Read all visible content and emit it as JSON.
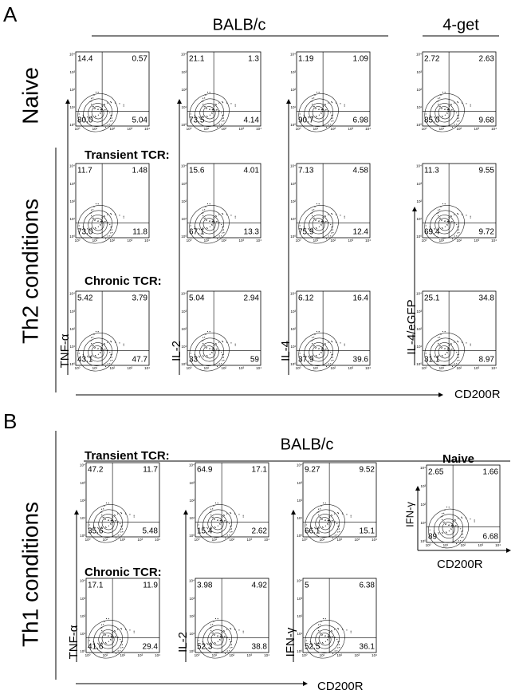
{
  "panel_a": {
    "label": "A",
    "header": "BALB/c",
    "header_right": "4-get",
    "row_label_naive": "Naive",
    "row_label_th2": "Th2 conditions",
    "subheads": [
      "Transient TCR:",
      "Chronic TCR:"
    ],
    "y_labels": [
      "TNF-α",
      "IL-2",
      "IL-4",
      "IL-4/eGFP"
    ],
    "x_label": "CD200R",
    "plots": [
      [
        [
          "14.4",
          "0.57",
          "80.0",
          "5.04"
        ],
        [
          "21.1",
          "1.3",
          "73.5",
          "4.14"
        ],
        [
          "1.19",
          "1.09",
          "90.7",
          "6.98"
        ],
        [
          "2.72",
          "2.63",
          "85.0",
          "9.68"
        ]
      ],
      [
        [
          "11.7",
          "1.48",
          "73.0",
          "11.8"
        ],
        [
          "15.6",
          "4.01",
          "67.1",
          "13.3"
        ],
        [
          "7.13",
          "4.58",
          "75.9",
          "12.4"
        ],
        [
          "11.3",
          "9.55",
          "69.4",
          "9.72"
        ]
      ],
      [
        [
          "5.42",
          "3.79",
          "43.1",
          "47.7"
        ],
        [
          "5.04",
          "2.94",
          "33",
          "59"
        ],
        [
          "6.12",
          "16.4",
          "37.9",
          "39.6"
        ],
        [
          "25.1",
          "34.8",
          "31.1",
          "8.97"
        ]
      ]
    ]
  },
  "panel_b": {
    "label": "B",
    "header": "BALB/c",
    "row_label": "Th1 conditions",
    "subheads": [
      "Transient TCR:",
      "Chronic TCR:"
    ],
    "y_labels": [
      "TNF-α",
      "IL-2",
      "IFN-γ"
    ],
    "x_label": "CD200R",
    "plots": [
      [
        [
          "47.2",
          "11.7",
          "35.6",
          "5.48"
        ],
        [
          "64.9",
          "17.1",
          "15.4",
          "2.62"
        ],
        [
          "9.27",
          "9.52",
          "66.1",
          "15.1"
        ]
      ],
      [
        [
          "17.1",
          "11.9",
          "41.6",
          "29.4"
        ],
        [
          "3.98",
          "4.92",
          "52.3",
          "38.8"
        ],
        [
          "5",
          "6.38",
          "52.5",
          "36.1"
        ]
      ]
    ],
    "naive": {
      "title": "Naive",
      "y_label": "IFN-γ",
      "x_label": "CD200R",
      "quadrants": [
        "2.65",
        "1.66",
        "89",
        "6.68"
      ]
    }
  },
  "tick_labels": [
    "10⁰",
    "10¹",
    "10²",
    "10³",
    "10⁴"
  ]
}
